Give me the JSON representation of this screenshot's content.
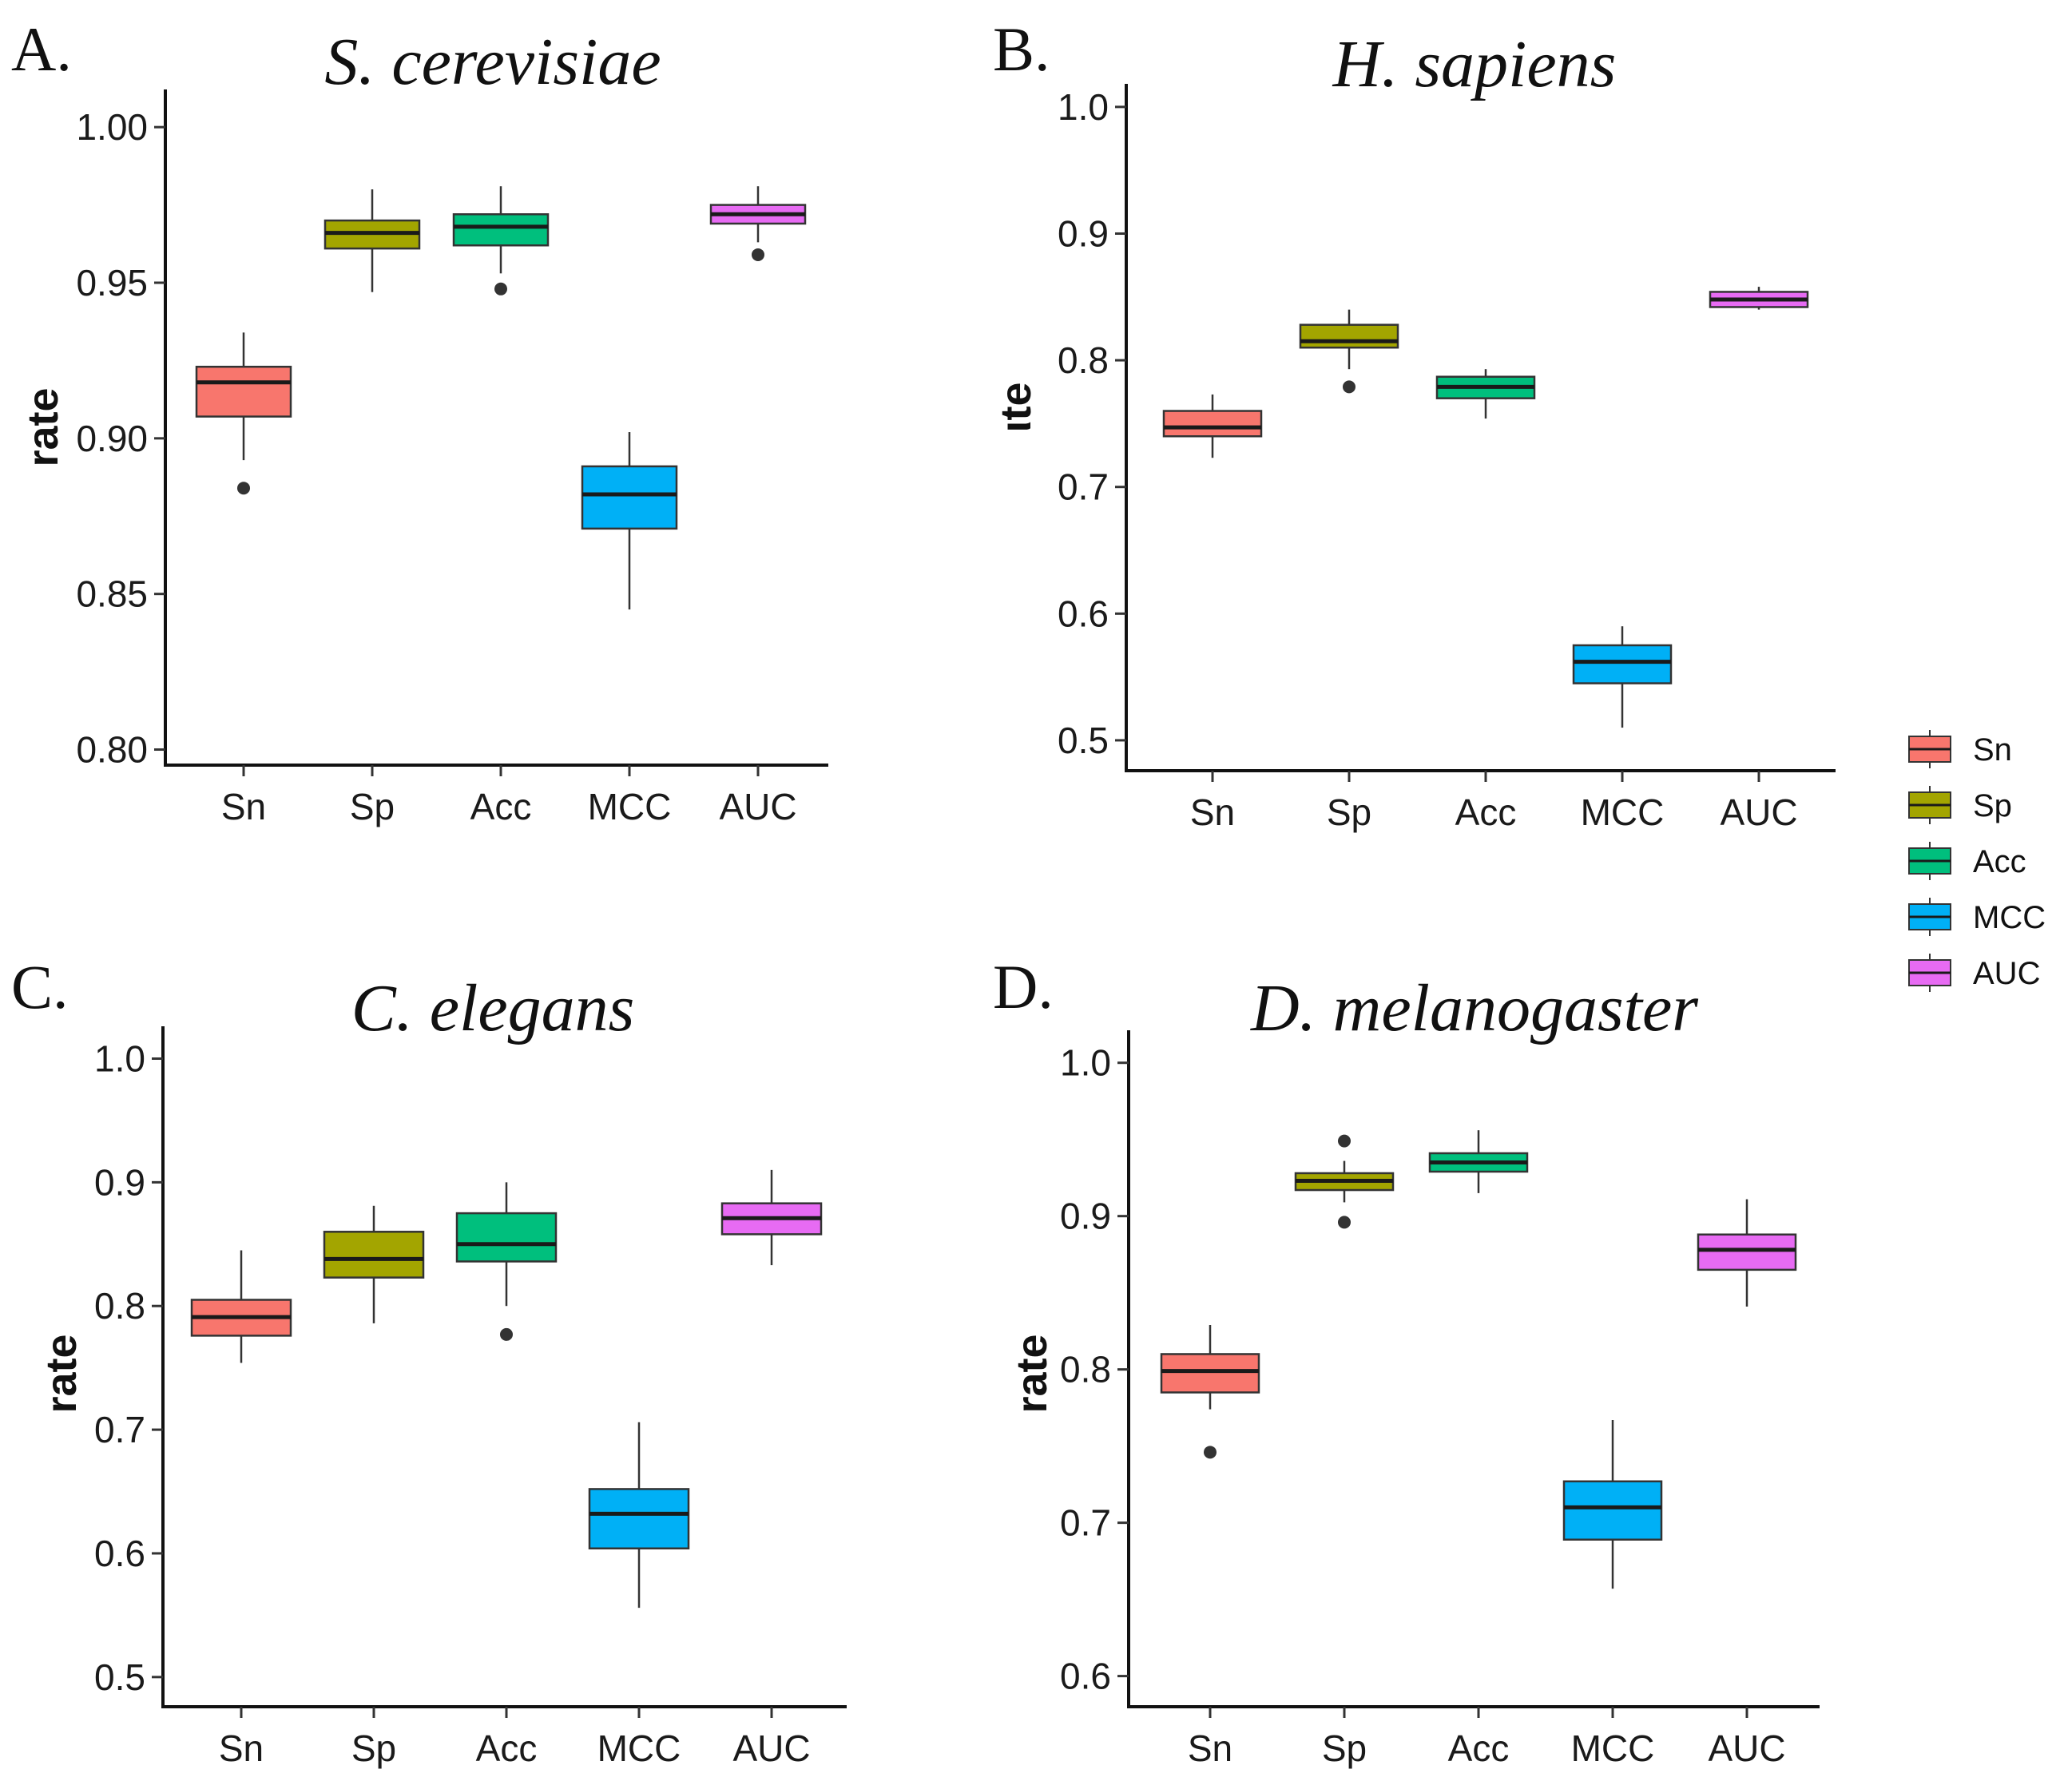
{
  "figure": {
    "legend": {
      "items": [
        {
          "label": "Sn",
          "color": "#F8766D"
        },
        {
          "label": "Sp",
          "color": "#A3A500"
        },
        {
          "label": "Acc",
          "color": "#00BF7D"
        },
        {
          "label": "MCC",
          "color": "#00B0F6"
        },
        {
          "label": "AUC",
          "color": "#E76BF3"
        }
      ]
    }
  },
  "chart_data": [
    {
      "type": "box",
      "panel": "A.",
      "title": "S. cerevisiae",
      "ylabel": "rate",
      "xlabel": "",
      "ylim": [
        0.795,
        1.008
      ],
      "yticks": [
        "0.80",
        "0.85",
        "0.90",
        "0.95",
        "1.00"
      ],
      "ytick_values": [
        0.8,
        0.85,
        0.9,
        0.95,
        1.0
      ],
      "categories": [
        "Sn",
        "Sp",
        "Acc",
        "MCC",
        "AUC"
      ],
      "boxes": [
        {
          "min": 0.893,
          "q1": 0.907,
          "median": 0.918,
          "q3": 0.923,
          "max": 0.934,
          "outliers": [
            0.884
          ]
        },
        {
          "min": 0.947,
          "q1": 0.961,
          "median": 0.966,
          "q3": 0.97,
          "max": 0.98,
          "outliers": []
        },
        {
          "min": 0.953,
          "q1": 0.962,
          "median": 0.968,
          "q3": 0.972,
          "max": 0.981,
          "outliers": [
            0.948
          ]
        },
        {
          "min": 0.845,
          "q1": 0.871,
          "median": 0.882,
          "q3": 0.891,
          "max": 0.902,
          "outliers": []
        },
        {
          "min": 0.963,
          "q1": 0.969,
          "median": 0.972,
          "q3": 0.975,
          "max": 0.981,
          "outliers": [
            0.959
          ]
        }
      ]
    },
    {
      "type": "box",
      "panel": "B.",
      "title": "H. sapiens",
      "ylabel": "ιte",
      "xlabel": "",
      "ylim": [
        0.476,
        1.01
      ],
      "yticks": [
        "0.5",
        "0.6",
        "0.7",
        "0.8",
        "0.9",
        "1.0"
      ],
      "ytick_values": [
        0.5,
        0.6,
        0.7,
        0.8,
        0.9,
        1.0
      ],
      "categories": [
        "Sn",
        "Sp",
        "Acc",
        "MCC",
        "AUC"
      ],
      "boxes": [
        {
          "min": 0.723,
          "q1": 0.74,
          "median": 0.747,
          "q3": 0.76,
          "max": 0.773,
          "outliers": []
        },
        {
          "min": 0.793,
          "q1": 0.81,
          "median": 0.815,
          "q3": 0.828,
          "max": 0.84,
          "outliers": [
            0.779
          ]
        },
        {
          "min": 0.754,
          "q1": 0.77,
          "median": 0.779,
          "q3": 0.787,
          "max": 0.793,
          "outliers": []
        },
        {
          "min": 0.51,
          "q1": 0.545,
          "median": 0.562,
          "q3": 0.575,
          "max": 0.59,
          "outliers": []
        },
        {
          "min": 0.84,
          "q1": 0.842,
          "median": 0.848,
          "q3": 0.854,
          "max": 0.858,
          "outliers": []
        }
      ]
    },
    {
      "type": "box",
      "panel": "C.",
      "title": "C. elegans",
      "ylabel": "rate",
      "xlabel": "",
      "ylim": [
        0.476,
        1.01
      ],
      "yticks": [
        "0.5",
        "0.6",
        "0.7",
        "0.8",
        "0.9",
        "1.0"
      ],
      "ytick_values": [
        0.5,
        0.6,
        0.7,
        0.8,
        0.9,
        1.0
      ],
      "categories": [
        "Sn",
        "Sp",
        "Acc",
        "MCC",
        "AUC"
      ],
      "boxes": [
        {
          "min": 0.754,
          "q1": 0.776,
          "median": 0.791,
          "q3": 0.805,
          "max": 0.845,
          "outliers": []
        },
        {
          "min": 0.786,
          "q1": 0.823,
          "median": 0.838,
          "q3": 0.86,
          "max": 0.881,
          "outliers": []
        },
        {
          "min": 0.8,
          "q1": 0.836,
          "median": 0.85,
          "q3": 0.875,
          "max": 0.9,
          "outliers": [
            0.777
          ]
        },
        {
          "min": 0.556,
          "q1": 0.604,
          "median": 0.632,
          "q3": 0.652,
          "max": 0.706,
          "outliers": []
        },
        {
          "min": 0.833,
          "q1": 0.858,
          "median": 0.871,
          "q3": 0.883,
          "max": 0.91,
          "outliers": []
        }
      ]
    },
    {
      "type": "box",
      "panel": "D.",
      "title": "D. melanogaster",
      "ylabel": "rate",
      "xlabel": "",
      "ylim": [
        0.58,
        1.016
      ],
      "yticks": [
        "0.6",
        "0.7",
        "0.8",
        "0.9",
        "1.0"
      ],
      "ytick_values": [
        0.6,
        0.7,
        0.8,
        0.9,
        1.0
      ],
      "categories": [
        "Sn",
        "Sp",
        "Acc",
        "MCC",
        "AUC"
      ],
      "boxes": [
        {
          "min": 0.774,
          "q1": 0.785,
          "median": 0.799,
          "q3": 0.81,
          "max": 0.829,
          "outliers": [
            0.746
          ]
        },
        {
          "min": 0.909,
          "q1": 0.917,
          "median": 0.923,
          "q3": 0.928,
          "max": 0.936,
          "outliers": [
            0.949,
            0.896
          ]
        },
        {
          "min": 0.915,
          "q1": 0.929,
          "median": 0.935,
          "q3": 0.941,
          "max": 0.956,
          "outliers": []
        },
        {
          "min": 0.657,
          "q1": 0.689,
          "median": 0.71,
          "q3": 0.727,
          "max": 0.767,
          "outliers": []
        },
        {
          "min": 0.841,
          "q1": 0.865,
          "median": 0.878,
          "q3": 0.888,
          "max": 0.911,
          "outliers": []
        }
      ]
    }
  ]
}
